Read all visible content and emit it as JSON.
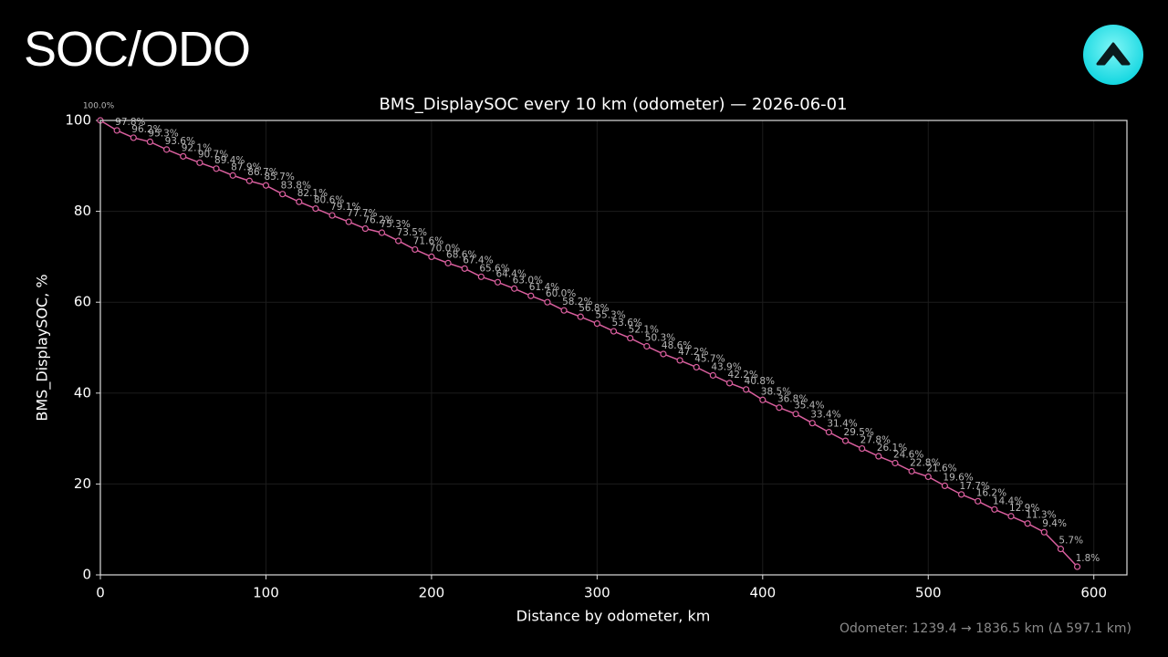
{
  "header": {
    "title": "SOC/ODO"
  },
  "chart_data": {
    "type": "line",
    "title": "BMS_DisplaySOC every 10 km (odometer) — 2026-06-01",
    "x_label": "Distance by odometer, km",
    "y_label": "BMS_DisplaySOC, %",
    "x": [
      0,
      10,
      20,
      30,
      40,
      50,
      60,
      70,
      80,
      90,
      100,
      110,
      120,
      130,
      140,
      150,
      160,
      170,
      180,
      190,
      200,
      210,
      220,
      230,
      240,
      250,
      260,
      270,
      280,
      290,
      300,
      310,
      320,
      330,
      340,
      350,
      360,
      370,
      380,
      390,
      400,
      410,
      420,
      430,
      440,
      450,
      460,
      470,
      480,
      490,
      500,
      510,
      520,
      530,
      540,
      550,
      560,
      570,
      580,
      590
    ],
    "values": [
      100.0,
      97.8,
      96.2,
      95.3,
      93.6,
      92.1,
      90.7,
      89.4,
      87.9,
      86.7,
      85.7,
      83.8,
      82.1,
      80.6,
      79.1,
      77.7,
      76.2,
      75.3,
      73.5,
      71.6,
      70.0,
      68.6,
      67.4,
      65.6,
      64.4,
      63.0,
      61.4,
      60.0,
      58.2,
      56.8,
      55.3,
      53.6,
      52.1,
      50.3,
      48.6,
      47.2,
      45.7,
      43.9,
      42.2,
      40.8,
      38.5,
      36.8,
      35.4,
      33.4,
      31.4,
      29.5,
      27.8,
      26.1,
      24.6,
      22.8,
      21.6,
      19.6,
      17.7,
      16.2,
      14.4,
      12.9,
      11.3,
      9.4,
      5.7,
      1.8
    ],
    "value_labels": [
      "100.0%",
      "97.8%",
      "96.2%",
      "95.3%",
      "93.6%",
      "92.1%",
      "90.7%",
      "89.4%",
      "87.9%",
      "86.7%",
      "85.7%",
      "83.8%",
      "82.1%",
      "80.6%",
      "79.1%",
      "77.7%",
      "76.2%",
      "75.3%",
      "73.5%",
      "71.6%",
      "70.0%",
      "68.6%",
      "67.4%",
      "65.6%",
      "64.4%",
      "63.0%",
      "61.4%",
      "60.0%",
      "58.2%",
      "56.8%",
      "55.3%",
      "53.6%",
      "52.1%",
      "50.3%",
      "48.6%",
      "47.2%",
      "45.7%",
      "43.9%",
      "42.2%",
      "40.8%",
      "38.5%",
      "36.8%",
      "35.4%",
      "33.4%",
      "31.4%",
      "29.5%",
      "27.8%",
      "26.1%",
      "24.6%",
      "22.8%",
      "21.6%",
      "19.6%",
      "17.7%",
      "16.2%",
      "14.4%",
      "12.9%",
      "11.3%",
      "9.4%",
      "5.7%",
      "1.8%"
    ],
    "color": "#d95f9e",
    "xlim": [
      0,
      620
    ],
    "xticks": [
      0,
      100,
      200,
      300,
      400,
      500,
      600
    ],
    "ylim": [
      0,
      100
    ],
    "yticks": [
      0,
      20,
      40,
      60,
      80,
      100
    ],
    "grid": true
  },
  "footer": {
    "note": "Odometer: 1239.4 → 1836.5 km (Δ 597.1 km)"
  }
}
